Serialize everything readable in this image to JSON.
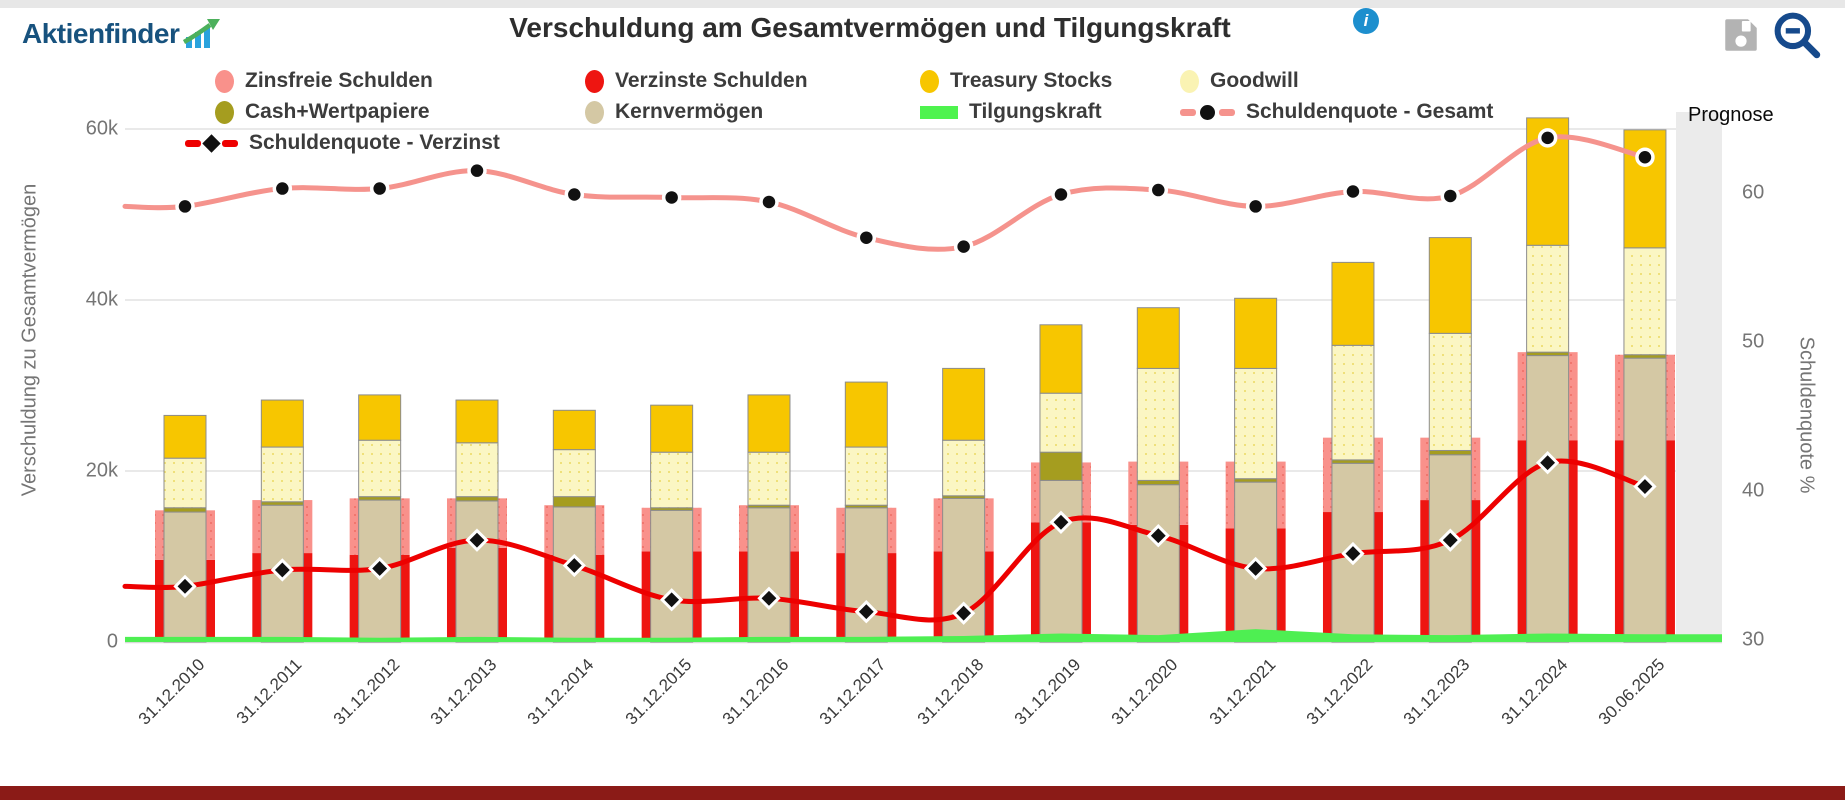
{
  "header": {
    "logo_text": "Aktienfinder",
    "title": "Verschuldung am Gesamtvermögen und Tilgungskraft",
    "info_glyph": "i",
    "icons": {
      "save": "floppy-disk-icon",
      "zoom_out": "magnifier-minus-icon"
    }
  },
  "prognose_label": "Prognose",
  "axes": {
    "left": {
      "title": "Verschuldung zu Gesamtvermögen",
      "unit": "k",
      "ticks": [
        {
          "label": "0",
          "value": 0
        },
        {
          "label": "20k",
          "value": 20
        },
        {
          "label": "40k",
          "value": 40
        },
        {
          "label": "60k",
          "value": 60
        }
      ]
    },
    "right": {
      "title": "Schuldenquote %",
      "ticks": [
        {
          "label": "30",
          "value": 30
        },
        {
          "label": "40",
          "value": 40
        },
        {
          "label": "50",
          "value": 50
        },
        {
          "label": "60",
          "value": 60
        }
      ]
    }
  },
  "legend": {
    "rows": [
      [
        {
          "label": "Zinsfreie Schulden",
          "marker": "circle",
          "color": "#f9918b"
        },
        {
          "label": "Verzinste Schulden",
          "marker": "circle",
          "color": "#ee1511"
        },
        {
          "label": "Treasury Stocks",
          "marker": "circle",
          "color": "#f7c600"
        },
        {
          "label": "Goodwill",
          "marker": "circle",
          "color": "#faf3b3"
        }
      ],
      [
        {
          "label": "Cash+Wertpapiere",
          "marker": "circle",
          "color": "#a59d1f"
        },
        {
          "label": "Kernvermögen",
          "marker": "circle",
          "color": "#d4c8a4"
        },
        {
          "label": "Tilgungskraft",
          "marker": "rect",
          "color": "#4ef34e"
        },
        {
          "label": "Schuldenquote - Gesamt",
          "marker": "line-dot",
          "color": "#f5938d"
        }
      ],
      [
        {
          "label": "Schuldenquote - Verzinst",
          "marker": "line-diamond",
          "color": "#ee0000"
        }
      ]
    ]
  },
  "chart_data": {
    "type": "combo",
    "title": "Verschuldung am Gesamtvermögen und Tilgungskraft",
    "categories": [
      "31.12.2010",
      "31.12.2011",
      "31.12.2012",
      "31.12.2013",
      "31.12.2014",
      "31.12.2015",
      "31.12.2016",
      "31.12.2017",
      "31.12.2018",
      "31.12.2019",
      "31.12.2020",
      "31.12.2021",
      "31.12.2022",
      "31.12.2023",
      "31.12.2024",
      "30.06.2025"
    ],
    "unit_left": "thousands",
    "ylim_left": [
      0,
      63.7
    ],
    "ylim_right": [
      29.9,
      66.4
    ],
    "grid": true,
    "prognose_from_category": "30.06.2025",
    "bar_series_assets": [
      {
        "name": "Kernvermögen",
        "color": "#d4c8a4",
        "values": [
          15.2,
          16.0,
          16.6,
          16.5,
          15.8,
          15.4,
          15.7,
          15.7,
          16.8,
          18.9,
          18.4,
          18.7,
          20.9,
          21.9,
          33.5,
          33.2
        ]
      },
      {
        "name": "Cash+Wertpapiere",
        "color": "#a59d1f",
        "values": [
          0.5,
          0.4,
          0.4,
          0.5,
          1.2,
          0.3,
          0.3,
          0.3,
          0.3,
          3.3,
          0.5,
          0.4,
          0.4,
          0.5,
          0.4,
          0.4
        ]
      },
      {
        "name": "Goodwill",
        "color": "#fbf6c3",
        "values": [
          5.8,
          6.4,
          6.6,
          6.3,
          5.5,
          6.5,
          6.2,
          6.8,
          6.5,
          6.9,
          13.1,
          12.9,
          13.4,
          13.7,
          12.5,
          12.5
        ]
      },
      {
        "name": "Treasury Stocks",
        "color": "#f7c600",
        "values": [
          5.0,
          5.5,
          5.3,
          5.0,
          4.6,
          5.5,
          6.7,
          7.6,
          8.4,
          8.0,
          7.1,
          8.2,
          9.7,
          11.2,
          14.9,
          13.8
        ]
      }
    ],
    "bar_series_debt": [
      {
        "name": "Verzinste Schulden",
        "color": "#ee1511",
        "values": [
          9.6,
          10.4,
          10.2,
          11.0,
          10.2,
          10.6,
          10.6,
          10.4,
          10.6,
          14.0,
          13.7,
          13.3,
          15.2,
          16.6,
          23.6,
          23.6
        ]
      },
      {
        "name": "Zinsfreie Schulden",
        "color": "#f9918b",
        "values": [
          5.8,
          6.2,
          6.6,
          5.8,
          5.8,
          5.1,
          5.4,
          5.3,
          6.2,
          7.0,
          7.4,
          7.8,
          8.7,
          7.3,
          10.3,
          10.0
        ]
      }
    ],
    "area_series": {
      "name": "Tilgungskraft",
      "color": "#4eef52",
      "values": [
        0.6,
        0.6,
        0.5,
        0.6,
        0.5,
        0.5,
        0.6,
        0.6,
        0.7,
        1.0,
        0.8,
        1.5,
        0.9,
        0.8,
        1.0,
        0.9
      ]
    },
    "line_series": [
      {
        "name": "Schuldenquote - Gesamt",
        "axis": "right",
        "color": "#f5938d",
        "marker": "circle",
        "values": [
          59.1,
          60.3,
          60.3,
          61.5,
          59.9,
          59.7,
          59.4,
          57.0,
          56.4,
          59.9,
          60.2,
          59.1,
          60.1,
          59.8,
          63.7,
          62.4
        ]
      },
      {
        "name": "Schuldenquote - Verzinst",
        "axis": "right",
        "color": "#ed0000",
        "marker": "diamond",
        "values": [
          33.6,
          34.7,
          34.8,
          36.7,
          35.0,
          32.7,
          32.8,
          31.9,
          31.8,
          37.9,
          37.0,
          34.8,
          35.8,
          36.7,
          41.9,
          40.3
        ]
      }
    ]
  }
}
